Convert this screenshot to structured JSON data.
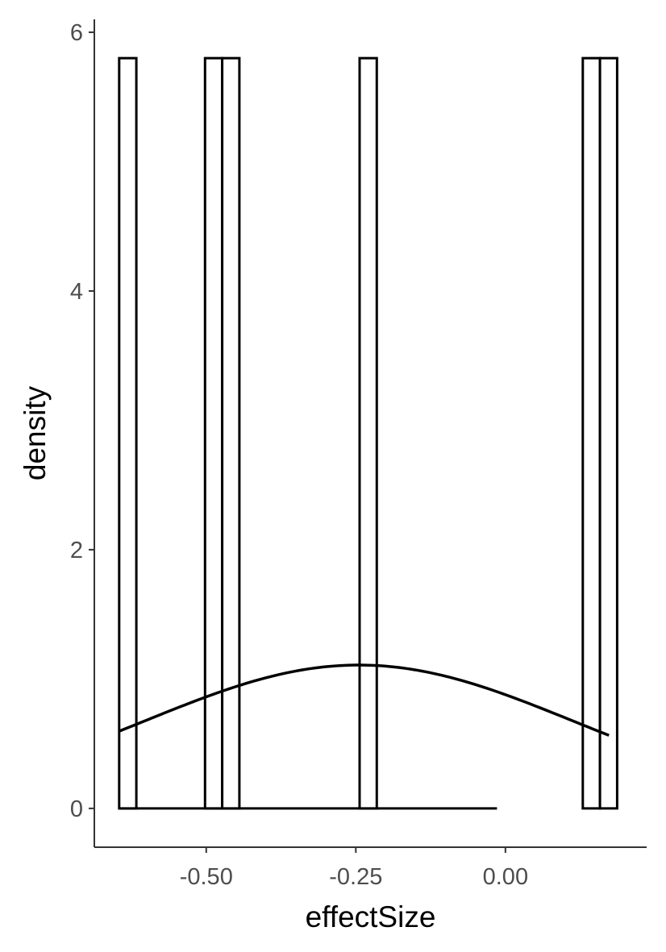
{
  "chart_data": {
    "type": "histogram",
    "xlabel": "effectSize",
    "ylabel": "density",
    "xlim": [
      -0.687,
      0.236
    ],
    "ylim": [
      -0.3,
      6.1
    ],
    "x_ticks": [
      {
        "value": -0.5,
        "label": "-0.50"
      },
      {
        "value": -0.25,
        "label": "-0.25"
      },
      {
        "value": 0.0,
        "label": "0.00"
      }
    ],
    "y_ticks": [
      {
        "value": 0,
        "label": "0"
      },
      {
        "value": 2,
        "label": "2"
      },
      {
        "value": 4,
        "label": "4"
      },
      {
        "value": 6,
        "label": "6"
      }
    ],
    "bin_width": 0.0287,
    "bin_start": -0.6455,
    "bin_count": 22,
    "bars": [
      {
        "x": -0.6455,
        "density": 5.8
      },
      {
        "x": -0.502,
        "density": 5.8
      },
      {
        "x": -0.4733,
        "density": 5.8
      },
      {
        "x": -0.2437,
        "density": 5.8
      },
      {
        "x": 0.1293,
        "density": 5.8
      },
      {
        "x": 0.158,
        "density": 5.8
      }
    ],
    "density_curve": {
      "type": "normal",
      "mean": -0.245,
      "sd": 0.36,
      "x_range": [
        -0.645,
        0.173
      ]
    },
    "grid": false,
    "legend": "none",
    "colors": {
      "bar_outline": "#000000",
      "bar_fill": "#ffffff",
      "curve": "#000000",
      "axis": "#333333"
    }
  }
}
